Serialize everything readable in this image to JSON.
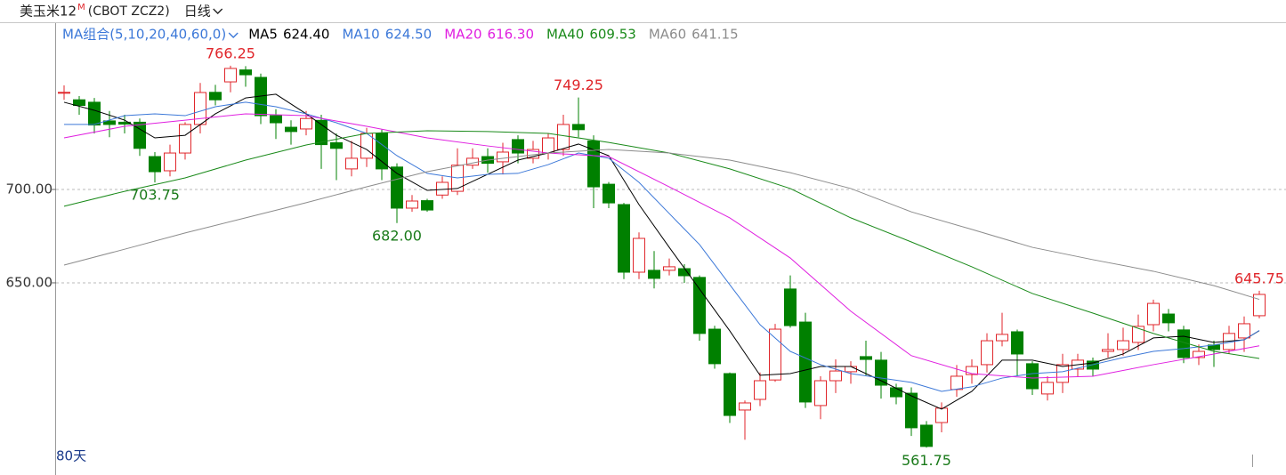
{
  "chart_data": {
    "type": "candlestick",
    "title": "美玉米12",
    "title_sup": "M",
    "subtitle": "(CBOT ZCZ2)",
    "period": "日线",
    "ma_group": "MA组合(5,10,20,40,60,0)",
    "day_count": "80天",
    "up_color": "#e0262b",
    "down_color": "#008000",
    "ylim": [
      551.4,
      788.1
    ],
    "yticks": [
      {
        "value": 700,
        "label": "700.00"
      },
      {
        "value": 650,
        "label": "650.00"
      }
    ],
    "grid": true,
    "candles": {
      "open": [
        752,
        748,
        746.7,
        736.7,
        736,
        736,
        717.6,
        710,
        719.5,
        734.8,
        752,
        757.6,
        764,
        760,
        739.5,
        733.3,
        732.4,
        737,
        725,
        711,
        716.7,
        730,
        712,
        690,
        694,
        697,
        699,
        713,
        717.6,
        714.8,
        726.7,
        716.7,
        719.5,
        721.4,
        734.8,
        726,
        702.8,
        691.9,
        655.7,
        656.7,
        656.7,
        657.6,
        652.9,
        625.2,
        601.4,
        581.9,
        587.6,
        598,
        646.7,
        629,
        584.3,
        597.6,
        602.4,
        610.5,
        608.6,
        593.8,
        590.9,
        573.8,
        575.2,
        592.9,
        600.9,
        606.2,
        619,
        623.8,
        606.7,
        590.5,
        596.7,
        603.8,
        608.1,
        613.3,
        614.3,
        618.1,
        627.6,
        633.3,
        624.8,
        610,
        616.7,
        614.3,
        620.5,
        632.4
      ],
      "high": [
        755.7,
        750,
        749,
        742,
        740,
        738,
        720,
        724,
        736,
        757,
        756,
        766.25,
        766,
        762,
        743,
        737,
        742,
        740,
        730,
        726,
        733,
        732,
        714,
        697,
        695,
        707,
        722,
        722,
        722,
        725,
        729,
        726,
        730,
        740,
        749.25,
        729,
        704,
        692.8,
        677,
        667,
        663,
        660,
        654,
        627,
        602,
        587,
        602,
        628,
        654,
        634,
        600,
        609,
        608,
        619,
        613,
        596,
        594,
        576,
        586,
        606,
        609,
        623,
        634,
        625,
        608,
        600,
        612,
        612,
        610,
        623,
        626,
        633,
        641,
        636,
        627,
        617,
        619,
        627,
        632,
        645.75
      ],
      "low": [
        748,
        740,
        730,
        728,
        730,
        718,
        703.75,
        707,
        716,
        730,
        745,
        752,
        755,
        735,
        727,
        724,
        729,
        711,
        705,
        707,
        712,
        705,
        682,
        688,
        688,
        695,
        697,
        711,
        709,
        708,
        714,
        714,
        716,
        718,
        728,
        690,
        690,
        652,
        652,
        647,
        654,
        650,
        619,
        604,
        575,
        566,
        584,
        597,
        626,
        583,
        577,
        591,
        596,
        600,
        588,
        585,
        568,
        561.75,
        570,
        589,
        596,
        602,
        616,
        600,
        590,
        587,
        591,
        600,
        600,
        610,
        611,
        614,
        624,
        624,
        607,
        606,
        605,
        612,
        613,
        631
      ],
      "close": [
        752,
        745,
        734.5,
        734.8,
        735,
        722,
        709.5,
        719.5,
        734.8,
        751.9,
        748,
        764.8,
        761.4,
        739.5,
        735.7,
        731,
        738,
        724,
        722,
        716.7,
        730,
        711,
        690,
        693.8,
        689,
        703.8,
        713,
        716.7,
        714,
        720,
        719.5,
        721.4,
        727.6,
        734.8,
        732,
        701.4,
        692.8,
        655.7,
        673.8,
        652.4,
        658.6,
        653.8,
        622.9,
        606.7,
        579,
        585.7,
        597.6,
        625.2,
        627.1,
        586.2,
        597.6,
        602.8,
        605.2,
        609,
        595.2,
        589,
        572.4,
        562.4,
        582.9,
        600,
        605.2,
        619,
        622.4,
        611.9,
        593.3,
        596.7,
        606.2,
        608.6,
        603.8,
        614.3,
        619,
        626.7,
        639,
        628.6,
        610,
        613.3,
        614.3,
        622.9,
        628.1,
        643.8
      ]
    },
    "series": [
      {
        "name": "MA5",
        "color": "#000000",
        "x": [
          0,
          2,
          4,
          6,
          8,
          10,
          12,
          14,
          16,
          18,
          20,
          22,
          24,
          26,
          28,
          30,
          32,
          34,
          36,
          38,
          40,
          42,
          44,
          46,
          48,
          50,
          52,
          54,
          56,
          58,
          60,
          62,
          64,
          66,
          68,
          70,
          72,
          74,
          76,
          78,
          79
        ],
        "values": [
          746.7,
          742.4,
          737.1,
          727.6,
          729,
          740.5,
          749,
          751,
          740.5,
          729,
          721.4,
          708.6,
          699.5,
          700.5,
          708.1,
          715.7,
          719.5,
          724.3,
          718.1,
          691.9,
          669,
          646.7,
          624.3,
          600.5,
          601.4,
          605.2,
          605.2,
          597.6,
          589.5,
          582.4,
          591.9,
          608.6,
          608.6,
          605.2,
          607.1,
          611.9,
          620.5,
          621.4,
          618.1,
          619.5,
          624.4
        ],
        "value_labels": [
          null,
          null,
          null,
          null,
          null,
          null,
          null,
          null,
          null,
          null,
          null,
          null,
          null,
          null,
          null,
          null,
          null,
          null,
          null,
          null,
          null,
          null,
          null,
          null,
          null,
          null,
          null,
          null,
          null,
          null,
          null,
          null,
          null,
          null,
          null,
          null,
          null,
          null,
          null,
          null,
          "624.40"
        ]
      },
      {
        "name": "MA10",
        "color": "#3c78d8",
        "x": [
          0,
          2,
          4,
          6,
          8,
          10,
          12,
          14,
          16,
          18,
          20,
          22,
          24,
          26,
          28,
          30,
          32,
          34,
          36,
          38,
          40,
          42,
          44,
          46,
          48,
          50,
          52,
          54,
          56,
          58,
          60,
          62,
          64,
          66,
          68,
          70,
          72,
          74,
          76,
          78,
          79
        ],
        "values": [
          734.8,
          734.8,
          739.5,
          740.5,
          739.5,
          744.3,
          746.7,
          744.3,
          740.5,
          735.7,
          730,
          718.1,
          708.6,
          706.2,
          708.1,
          708.6,
          713.3,
          719.5,
          716.7,
          703.8,
          687.1,
          670.5,
          649,
          627.6,
          613.3,
          606.2,
          601.4,
          599,
          596.7,
          591.9,
          594.3,
          599,
          601.4,
          602.4,
          606.2,
          610,
          613.3,
          614.8,
          616.7,
          619.5,
          624.5
        ],
        "value_labels": [
          null,
          null,
          null,
          null,
          null,
          null,
          null,
          null,
          null,
          null,
          null,
          null,
          null,
          null,
          null,
          null,
          null,
          null,
          null,
          null,
          null,
          null,
          null,
          null,
          null,
          null,
          null,
          null,
          null,
          null,
          null,
          null,
          null,
          null,
          null,
          null,
          null,
          null,
          null,
          null,
          "624.50"
        ]
      },
      {
        "name": "MA20",
        "color": "#e020e0",
        "x": [
          0,
          4,
          8,
          12,
          16,
          20,
          24,
          28,
          32,
          36,
          40,
          44,
          48,
          52,
          56,
          60,
          64,
          68,
          72,
          76,
          79
        ],
        "values": [
          727.6,
          733.8,
          737.1,
          740.5,
          739.5,
          733.8,
          727.6,
          723.3,
          719.5,
          717.6,
          701.4,
          684.8,
          663.3,
          634.8,
          611,
          601.4,
          599,
          600,
          606.2,
          611.9,
          616.3
        ],
        "value_labels": [
          null,
          null,
          null,
          null,
          null,
          null,
          null,
          null,
          null,
          null,
          null,
          null,
          null,
          null,
          null,
          null,
          null,
          null,
          null,
          null,
          "616.30"
        ]
      },
      {
        "name": "MA40",
        "color": "#1a8a1a",
        "x": [
          0,
          4,
          8,
          12,
          16,
          20,
          24,
          28,
          32,
          36,
          40,
          44,
          48,
          52,
          56,
          60,
          64,
          68,
          72,
          76,
          79
        ],
        "values": [
          691,
          699,
          706.2,
          715.7,
          723.8,
          730,
          731.4,
          731,
          730,
          725.2,
          719.5,
          711,
          700.5,
          684.8,
          671.9,
          658.6,
          644.3,
          633.8,
          622.9,
          613.3,
          609.53
        ],
        "value_labels": [
          null,
          null,
          null,
          null,
          null,
          null,
          null,
          null,
          null,
          null,
          null,
          null,
          null,
          null,
          null,
          null,
          null,
          null,
          null,
          null,
          "609.53"
        ]
      },
      {
        "name": "MA60",
        "color": "#8c8c8c",
        "x": [
          0,
          4,
          8,
          12,
          16,
          20,
          24,
          28,
          32,
          36,
          40,
          44,
          48,
          52,
          56,
          60,
          64,
          68,
          72,
          76,
          79
        ],
        "values": [
          659.5,
          668,
          676.7,
          684.8,
          692.9,
          701.4,
          709.5,
          715.7,
          719.5,
          721.4,
          719.5,
          715.7,
          709,
          700.5,
          688,
          678.6,
          669,
          662.4,
          656.2,
          648.5,
          641.15
        ],
        "value_labels": [
          null,
          null,
          null,
          null,
          null,
          null,
          null,
          null,
          null,
          null,
          null,
          null,
          null,
          null,
          null,
          null,
          null,
          null,
          null,
          null,
          "641.15"
        ]
      }
    ],
    "annotations": [
      {
        "x": 11,
        "value": 766.25,
        "label": "766.25",
        "color": "#e0262b"
      },
      {
        "x": 34,
        "value": 749.25,
        "label": "749.25",
        "color": "#e0262b"
      },
      {
        "x": 6,
        "value": 703.75,
        "label": "703.75",
        "color": "#1a7a1a"
      },
      {
        "x": 22,
        "value": 682,
        "label": "682.00",
        "color": "#1a7a1a"
      },
      {
        "x": 57,
        "value": 561.75,
        "label": "561.75",
        "color": "#1a7a1a"
      },
      {
        "x": 79,
        "value": 645.75,
        "label": "645.75",
        "color": "#e0262b"
      }
    ]
  }
}
